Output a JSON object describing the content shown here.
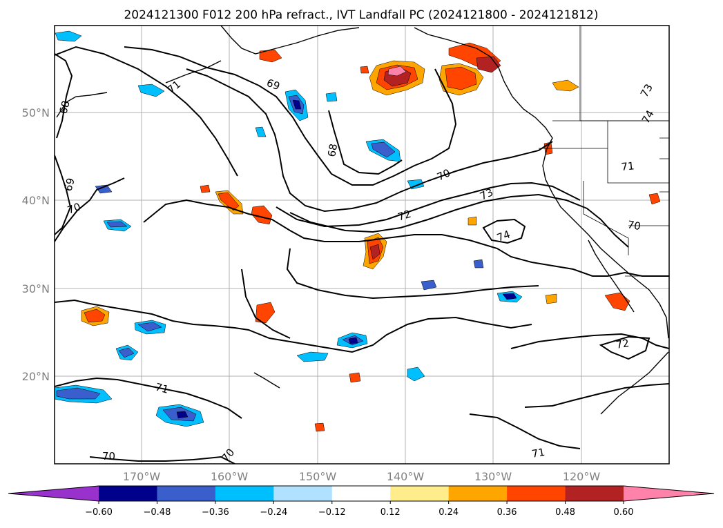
{
  "title": "2024121300 F012 200 hPa refract., IVT Landfall PC (2024121800 - 2024121812)",
  "map": {
    "lat_labels": [
      "50°N",
      "40°N",
      "30°N",
      "20°N"
    ],
    "lon_labels": [
      "170°W",
      "160°W",
      "150°W",
      "140°W",
      "130°W",
      "120°W"
    ],
    "contour_labels": [
      "71",
      "68",
      "69",
      "70",
      "69",
      "68",
      "70",
      "73",
      "72",
      "74",
      "71",
      "70",
      "73",
      "74",
      "72",
      "71",
      "71",
      "70",
      "70"
    ]
  },
  "colorbar": {
    "colors": [
      "#9932cc",
      "#00008b",
      "#3a5fcd",
      "#00bfff",
      "#b0e2ff",
      "#ffffff",
      "#ffec8b",
      "#ffa500",
      "#ff4500",
      "#b22222",
      "#ff82ab"
    ],
    "tick_labels": [
      "−0.60",
      "−0.48",
      "−0.36",
      "−0.24",
      "−0.12",
      "0.12",
      "0.24",
      "0.36",
      "0.48",
      "0.60"
    ]
  }
}
